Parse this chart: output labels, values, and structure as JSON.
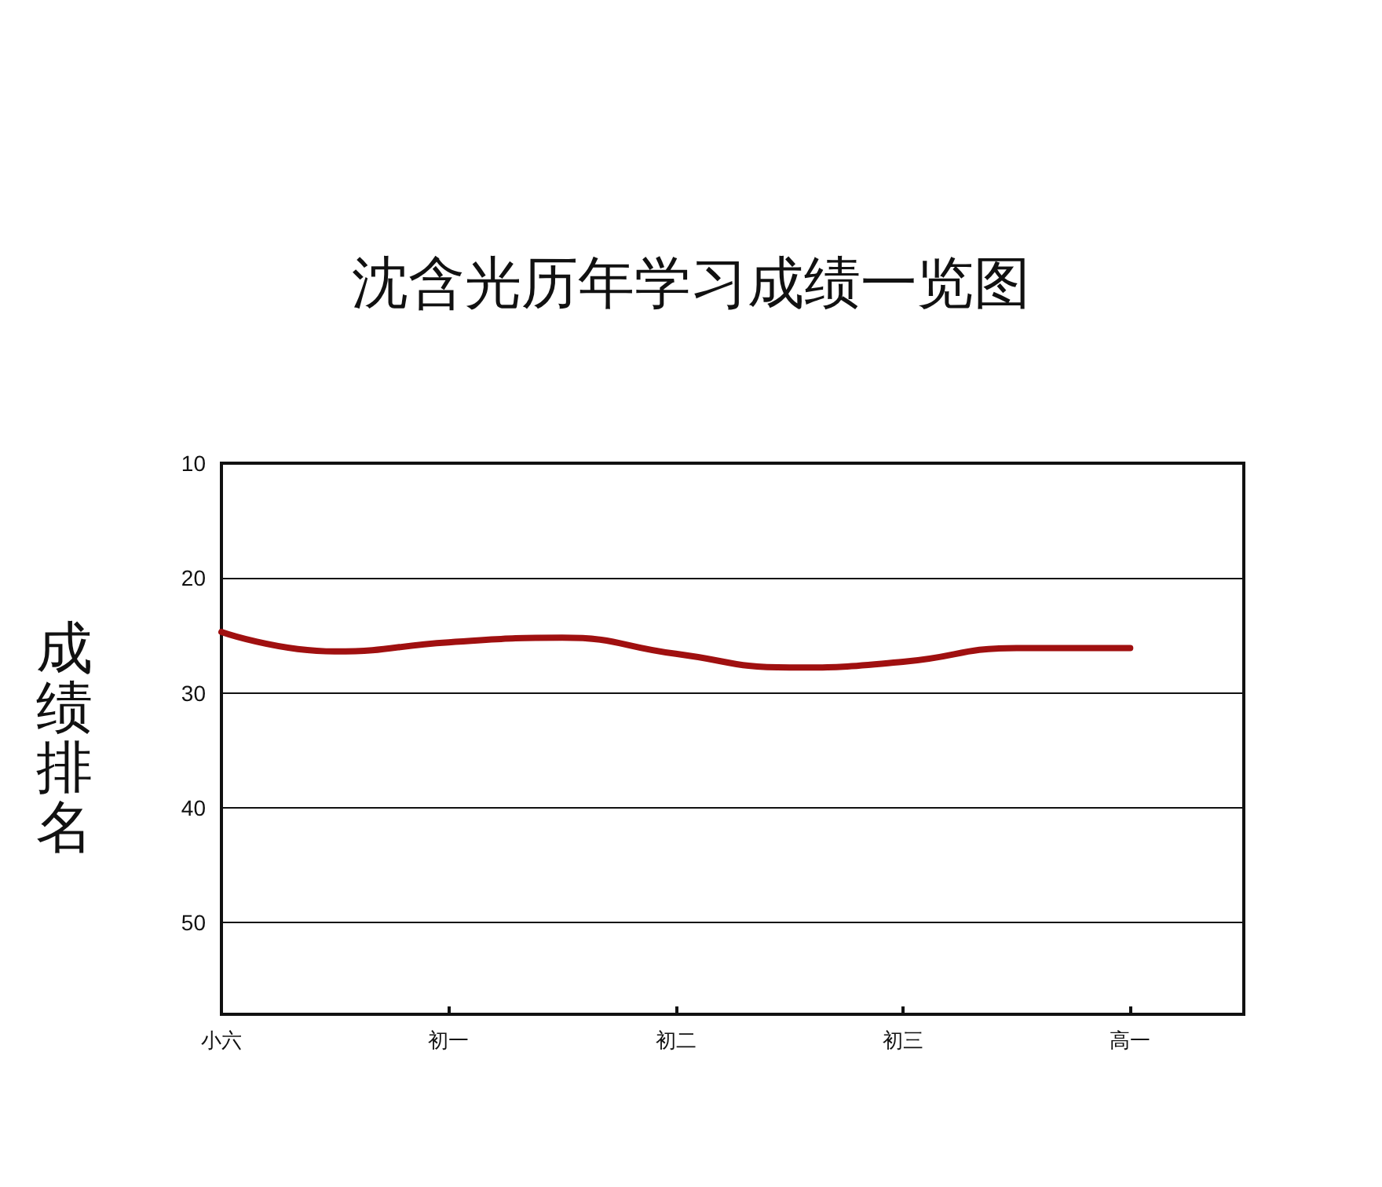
{
  "chart_data": {
    "type": "line",
    "title": "沈含光历年学习成绩一览图",
    "ylabel": "成绩排名",
    "categories": [
      "小六",
      null,
      "初一",
      null,
      "初二",
      null,
      "初三",
      null,
      "高一",
      null
    ],
    "series": [
      {
        "color": "#a01010",
        "values": [
          24.7,
          26.4,
          25.6,
          25.2,
          26.6,
          27.8,
          27.3,
          26.1,
          26.1,
          null
        ]
      }
    ],
    "ylim": [
      58,
      10
    ],
    "yticks": [
      10,
      20,
      30,
      40,
      50
    ],
    "grid": "y",
    "marker": "none",
    "line_style": "solid"
  }
}
